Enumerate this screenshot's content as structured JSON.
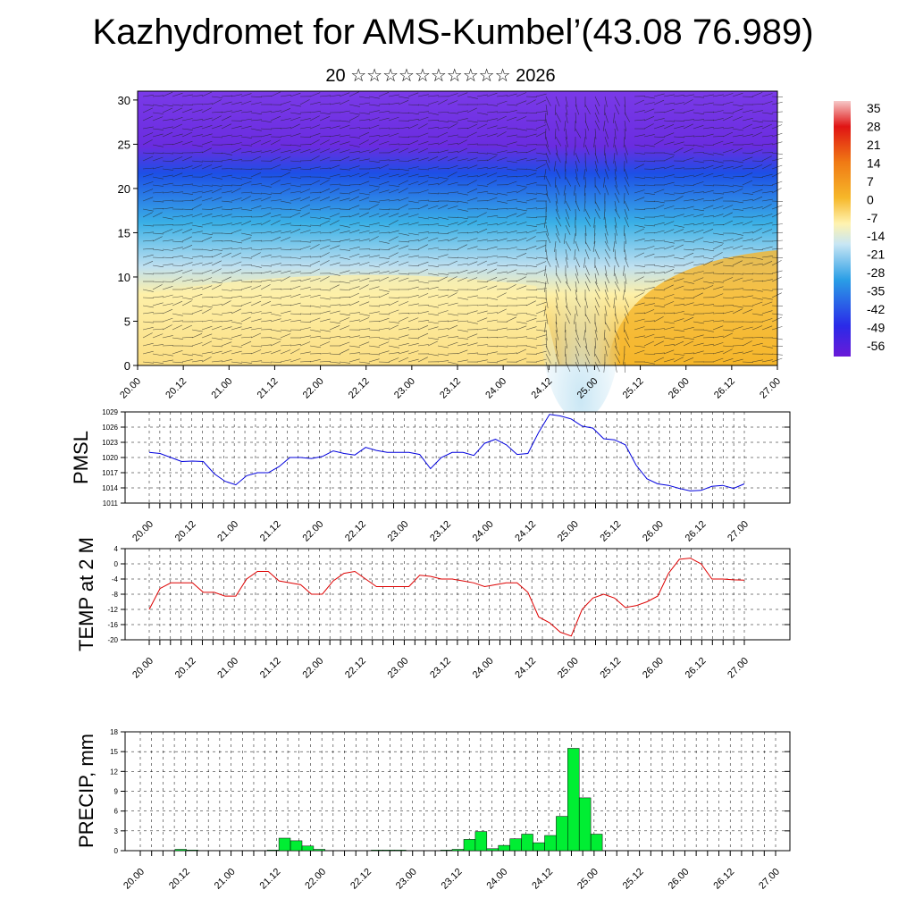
{
  "header": {
    "title": "Kazhydromet for AMS-Kumbel’(43.08 76.989)",
    "subtitle": "20 ☆☆☆☆☆☆☆☆☆☆ 2026"
  },
  "chart_data": [
    {
      "type": "heatmap",
      "name": "Vertical cross-section (temperature with wind barbs)",
      "xlabel": "",
      "ylabel": "",
      "x_tick_labels": [
        "20.00",
        "20.12",
        "21.00",
        "21.12",
        "22.00",
        "22.12",
        "23.00",
        "23.12",
        "24.00",
        "24.12",
        "25.00",
        "25.12",
        "26.00",
        "26.12",
        "27.00"
      ],
      "y_ticks": [
        "0",
        "5",
        "10",
        "15",
        "20",
        "25",
        "30"
      ],
      "ylim": [
        0,
        31
      ],
      "colorbar_labels": [
        "35",
        "28",
        "21",
        "14",
        "7",
        "0",
        "-7",
        "-14",
        "-21",
        "-28",
        "-35",
        "-42",
        "-49",
        "-56"
      ],
      "colors": {
        "warm": "#f5b52a",
        "pale": "#fdf0a8",
        "cool": "#bfe0f0",
        "mid": "#3ab0e6",
        "cold": "#1c4fe6",
        "deep": "#6a2ce0",
        "top": "#7a3ae8"
      }
    },
    {
      "type": "line",
      "ylabel": "PMSL",
      "y_ticks": [
        "1029",
        "1026",
        "1023",
        "1020",
        "1017",
        "1014",
        "1011"
      ],
      "ylim": [
        1011,
        1029
      ],
      "x_tick_labels": [
        "20.00",
        "20.12",
        "21.00",
        "21.12",
        "22.00",
        "22.12",
        "23.00",
        "23.12",
        "24.00",
        "24.12",
        "25.00",
        "25.12",
        "26.00",
        "26.12",
        "27.00"
      ],
      "values": [
        1021,
        1020.8,
        1020,
        1019.2,
        1019.3,
        1019.2,
        1016.8,
        1015.3,
        1014.6,
        1016.4,
        1017,
        1017,
        1018.2,
        1020,
        1020,
        1019.8,
        1020.2,
        1021.3,
        1020.8,
        1020.5,
        1022,
        1021.4,
        1021,
        1021,
        1021,
        1020.6,
        1017.8,
        1020,
        1021,
        1021,
        1020.4,
        1022.8,
        1023.6,
        1022.5,
        1020.6,
        1020.8,
        1025,
        1028.5,
        1028.2,
        1027.6,
        1026.2,
        1025.8,
        1023.7,
        1023.5,
        1022.5,
        1018.5,
        1015.8,
        1014.8,
        1014.5,
        1013.9,
        1013.4,
        1013.5,
        1014.3,
        1014.5,
        1013.9,
        1014.8
      ],
      "color": "#0000dd"
    },
    {
      "type": "line",
      "ylabel": "TEMP at 2 M",
      "y_ticks": [
        "4",
        "0",
        "-4",
        "-8",
        "-12",
        "-16",
        "-20"
      ],
      "ylim": [
        -20,
        4
      ],
      "x_tick_labels": [
        "20.00",
        "20.12",
        "21.00",
        "21.12",
        "22.00",
        "22.12",
        "23.00",
        "23.12",
        "24.00",
        "24.12",
        "25.00",
        "25.12",
        "26.00",
        "26.12",
        "27.00"
      ],
      "values": [
        -12,
        -6.5,
        -5,
        -5,
        -5,
        -7.5,
        -7.5,
        -8.5,
        -8.5,
        -4,
        -2,
        -2,
        -4.5,
        -5,
        -5.5,
        -8,
        -8,
        -4.5,
        -2.5,
        -2,
        -4,
        -6,
        -6,
        -6,
        -6,
        -3,
        -3.3,
        -4,
        -4,
        -4.5,
        -5,
        -6,
        -5.5,
        -5,
        -5,
        -7.5,
        -14,
        -15.5,
        -18,
        -19,
        -12,
        -9,
        -8,
        -9,
        -11.5,
        -11,
        -10,
        -8.5,
        -2.5,
        1.2,
        1.5,
        0,
        -4,
        -4,
        -4.2,
        -4.3
      ],
      "color": "#dd0000"
    },
    {
      "type": "bar",
      "ylabel": "PRECIP, mm",
      "y_ticks": [
        "18",
        "15",
        "12",
        "9",
        "6",
        "3",
        "0"
      ],
      "ylim": [
        0,
        18
      ],
      "x_tick_labels": [
        "20.00",
        "20.12",
        "21.00",
        "21.12",
        "22.00",
        "22.12",
        "23.00",
        "23.12",
        "24.00",
        "24.12",
        "25.00",
        "25.12",
        "26.00",
        "26.12",
        "27.00"
      ],
      "values": [
        0,
        0,
        0,
        0.2,
        0.1,
        0,
        0,
        0,
        0,
        0,
        0,
        0.1,
        1.9,
        1.5,
        0.7,
        0.2,
        0,
        0,
        0,
        0,
        0.1,
        0.1,
        0.1,
        0,
        0,
        0,
        0.1,
        0.2,
        1.7,
        2.9,
        0.3,
        0.8,
        1.8,
        2.5,
        1.2,
        2.3,
        5.2,
        15.5,
        8.0,
        2.5,
        0,
        0,
        0,
        0,
        0,
        0,
        0,
        0,
        0,
        0,
        0,
        0,
        0,
        0,
        0,
        0
      ],
      "color": "#00ee33"
    }
  ]
}
